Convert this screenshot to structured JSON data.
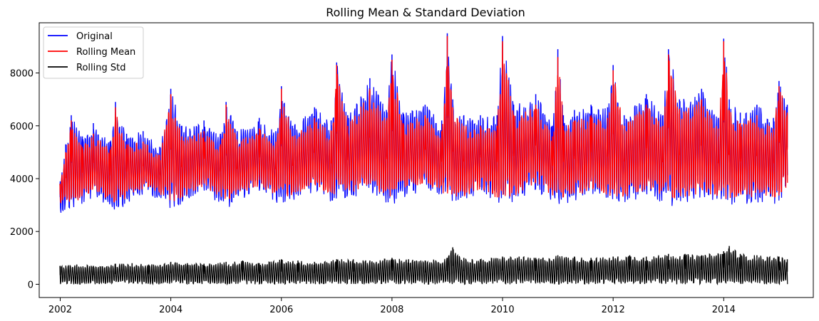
{
  "chart_data": {
    "type": "line",
    "title": "Rolling Mean & Standard Deviation",
    "xlabel": "",
    "ylabel": "",
    "xlim": [
      2001.62,
      2015.62
    ],
    "ylim": [
      -500,
      9900
    ],
    "x_ticks": [
      2002,
      2004,
      2006,
      2008,
      2010,
      2012,
      2014
    ],
    "x_tick_labels": [
      "2002",
      "2004",
      "2006",
      "2008",
      "2010",
      "2012",
      "2014"
    ],
    "y_ticks": [
      0,
      2000,
      4000,
      6000,
      8000
    ],
    "y_tick_labels": [
      "0",
      "2000",
      "4000",
      "6000",
      "8000"
    ],
    "grid": false,
    "legend_position": "top-left",
    "x_range": [
      2002.0,
      2015.15
    ],
    "series": [
      {
        "name": "Original",
        "color": "#0000ff",
        "upper_envelope": {
          "x": [
            2002.0,
            2002.1,
            2002.2,
            2002.4,
            2002.6,
            2002.9,
            2003.0,
            2003.2,
            2003.5,
            2003.8,
            2004.0,
            2004.2,
            2004.6,
            2004.9,
            2005.0,
            2005.2,
            2005.6,
            2005.9,
            2006.0,
            2006.2,
            2006.6,
            2006.9,
            2007.0,
            2007.2,
            2007.6,
            2007.9,
            2008.0,
            2008.2,
            2008.6,
            2008.9,
            2009.0,
            2009.1,
            2009.3,
            2009.6,
            2009.9,
            2010.0,
            2010.2,
            2010.6,
            2010.9,
            2011.0,
            2011.1,
            2011.3,
            2011.6,
            2011.9,
            2012.0,
            2012.2,
            2012.6,
            2012.9,
            2013.0,
            2013.2,
            2013.6,
            2013.9,
            2014.0,
            2014.1,
            2014.3,
            2014.6,
            2014.9,
            2015.0,
            2015.15
          ],
          "y": [
            3900,
            5300,
            6400,
            5600,
            6100,
            5400,
            6900,
            5700,
            5800,
            5200,
            7400,
            6000,
            6200,
            5700,
            6900,
            5800,
            6300,
            5800,
            7500,
            6000,
            6700,
            6200,
            8400,
            6400,
            7800,
            6600,
            8700,
            6500,
            6800,
            6200,
            9500,
            7000,
            6400,
            6400,
            6400,
            9400,
            6800,
            7200,
            6000,
            8900,
            6400,
            6600,
            6800,
            6700,
            8300,
            6400,
            7200,
            6400,
            8900,
            7000,
            7400,
            6300,
            9300,
            7000,
            6500,
            6800,
            6300,
            7700,
            6800
          ]
        },
        "lower_envelope": {
          "x": [
            2002.0,
            2002.3,
            2002.6,
            2003.0,
            2003.3,
            2003.6,
            2004.0,
            2004.3,
            2004.6,
            2005.0,
            2005.3,
            2005.6,
            2006.0,
            2006.3,
            2006.6,
            2007.0,
            2007.3,
            2007.6,
            2008.0,
            2008.3,
            2008.6,
            2009.0,
            2009.3,
            2009.6,
            2010.0,
            2010.3,
            2010.6,
            2011.0,
            2011.3,
            2011.6,
            2012.0,
            2012.3,
            2012.6,
            2013.0,
            2013.3,
            2013.6,
            2014.0,
            2014.3,
            2014.6,
            2015.0,
            2015.15
          ],
          "y": [
            2700,
            2850,
            3300,
            2750,
            3150,
            3450,
            2800,
            3200,
            3500,
            2850,
            3250,
            3500,
            2950,
            3250,
            3450,
            3000,
            3300,
            3500,
            2900,
            3300,
            3600,
            3100,
            3100,
            3400,
            2900,
            3200,
            3500,
            3000,
            3100,
            3400,
            3050,
            3100,
            3300,
            2900,
            3000,
            3300,
            2950,
            3000,
            3100,
            3000,
            3550
          ]
        }
      },
      {
        "name": "Rolling Mean",
        "color": "#ff0000",
        "upper_envelope": {
          "x": [
            2002.0,
            2002.1,
            2002.2,
            2002.4,
            2002.6,
            2002.9,
            2003.0,
            2003.2,
            2003.5,
            2003.8,
            2004.0,
            2004.2,
            2004.6,
            2004.9,
            2005.0,
            2005.2,
            2005.6,
            2005.9,
            2006.0,
            2006.2,
            2006.6,
            2006.9,
            2007.0,
            2007.2,
            2007.6,
            2007.9,
            2008.0,
            2008.2,
            2008.6,
            2008.9,
            2009.0,
            2009.1,
            2009.3,
            2009.6,
            2009.9,
            2010.0,
            2010.2,
            2010.6,
            2010.9,
            2011.0,
            2011.1,
            2011.3,
            2011.6,
            2011.9,
            2012.0,
            2012.2,
            2012.6,
            2012.9,
            2013.0,
            2013.2,
            2013.6,
            2013.9,
            2014.0,
            2014.1,
            2014.3,
            2014.6,
            2014.9,
            2015.0,
            2015.15
          ],
          "y": [
            3800,
            5000,
            6200,
            5200,
            5700,
            5100,
            6700,
            5300,
            5400,
            4900,
            7200,
            5600,
            5800,
            5300,
            6800,
            5400,
            5900,
            5400,
            7400,
            5600,
            6300,
            5800,
            8300,
            6000,
            7400,
            6200,
            8500,
            6100,
            6400,
            5800,
            9400,
            6700,
            6000,
            6000,
            6000,
            9200,
            6400,
            6800,
            5600,
            8600,
            6000,
            6200,
            6400,
            6300,
            8100,
            6000,
            6800,
            6000,
            8700,
            6600,
            7000,
            5900,
            9200,
            6600,
            6100,
            6400,
            5900,
            7500,
            6500
          ]
        },
        "lower_envelope": {
          "x": [
            2002.0,
            2002.3,
            2002.6,
            2003.0,
            2003.3,
            2003.6,
            2004.0,
            2004.3,
            2004.6,
            2005.0,
            2005.3,
            2005.6,
            2006.0,
            2006.3,
            2006.6,
            2007.0,
            2007.3,
            2007.6,
            2008.0,
            2008.3,
            2008.6,
            2009.0,
            2009.3,
            2009.6,
            2010.0,
            2010.3,
            2010.6,
            2011.0,
            2011.3,
            2011.6,
            2012.0,
            2012.3,
            2012.6,
            2013.0,
            2013.3,
            2013.6,
            2014.0,
            2014.3,
            2014.6,
            2015.0,
            2015.15
          ],
          "y": [
            3000,
            3100,
            3500,
            3000,
            3350,
            3650,
            3050,
            3400,
            3700,
            3100,
            3450,
            3700,
            3200,
            3450,
            3650,
            3250,
            3500,
            3700,
            3150,
            3500,
            3800,
            3350,
            3300,
            3600,
            3150,
            3400,
            3700,
            3250,
            3300,
            3600,
            3300,
            3300,
            3500,
            3150,
            3200,
            3500,
            3200,
            3200,
            3300,
            3250,
            3700
          ]
        }
      },
      {
        "name": "Rolling Std",
        "color": "#000000",
        "upper_envelope": {
          "x": [
            2002.0,
            2002.3,
            2002.6,
            2003.0,
            2003.3,
            2003.6,
            2004.0,
            2004.3,
            2004.6,
            2005.0,
            2005.3,
            2005.6,
            2006.0,
            2006.3,
            2006.6,
            2007.0,
            2007.3,
            2007.6,
            2008.0,
            2008.3,
            2008.6,
            2009.0,
            2009.1,
            2009.3,
            2009.6,
            2010.0,
            2010.3,
            2010.6,
            2011.0,
            2011.3,
            2011.6,
            2012.0,
            2012.3,
            2012.6,
            2013.0,
            2013.3,
            2013.6,
            2014.0,
            2014.1,
            2014.3,
            2014.6,
            2015.0,
            2015.15
          ],
          "y": [
            700,
            750,
            700,
            780,
            800,
            750,
            850,
            800,
            780,
            850,
            900,
            800,
            950,
            900,
            850,
            950,
            950,
            900,
            1000,
            950,
            900,
            1000,
            1400,
            1000,
            950,
            1050,
            1050,
            1000,
            1100,
            1050,
            1000,
            1050,
            1100,
            1050,
            1150,
            1150,
            1100,
            1250,
            1450,
            1150,
            1100,
            1050,
            950
          ]
        },
        "lower_envelope": {
          "x": [
            2002.0,
            2015.15
          ],
          "y": [
            0,
            0
          ]
        }
      }
    ]
  }
}
